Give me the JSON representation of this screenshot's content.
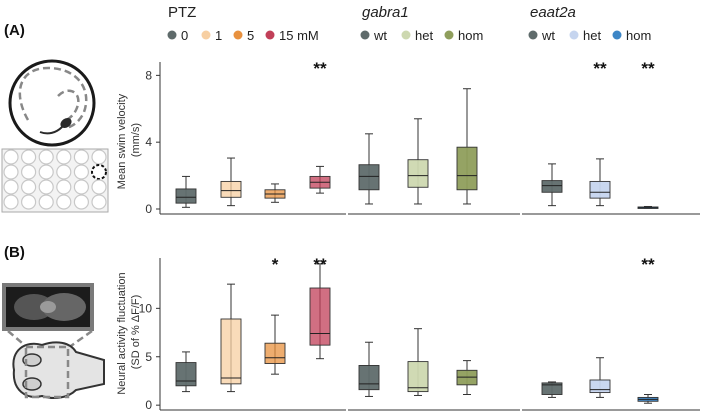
{
  "panels": [
    {
      "label": "(A)"
    },
    {
      "label": "(B)"
    }
  ],
  "groups": [
    {
      "title": "PTZ",
      "italic": false,
      "legend": [
        {
          "name": "0",
          "color": "#5f6b6b"
        },
        {
          "name": "1",
          "color": "#f7cfa2"
        },
        {
          "name": "5",
          "color": "#e8913f"
        },
        {
          "name": "15 mM",
          "color": "#c13f58"
        }
      ]
    },
    {
      "title": "gabra1",
      "italic": true,
      "legend": [
        {
          "name": "wt",
          "color": "#5f6b6b"
        },
        {
          "name": "het",
          "color": "#cdd8b0"
        },
        {
          "name": "hom",
          "color": "#8f9e5c"
        }
      ]
    },
    {
      "title": "eaat2a",
      "italic": true,
      "legend": [
        {
          "name": "wt",
          "color": "#5f6b6b"
        },
        {
          "name": "het",
          "color": "#c6d5ef"
        },
        {
          "name": "hom",
          "color": "#3d86c6"
        }
      ]
    }
  ],
  "chart_data": [
    {
      "type": "box",
      "panel": "A",
      "ylabel": "Mean swim velocity\n(mm/s)",
      "ylim": [
        -0.3,
        8.8
      ],
      "yticks": [
        0,
        4,
        8
      ],
      "groups": [
        {
          "name": "PTZ",
          "boxes": [
            {
              "name": "0",
              "color": "#5f6b6b",
              "min": 0.1,
              "q1": 0.35,
              "median": 0.7,
              "q3": 1.2,
              "max": 1.95
            },
            {
              "name": "1",
              "color": "#f7cfa2",
              "min": 0.2,
              "q1": 0.7,
              "median": 1.1,
              "q3": 1.65,
              "max": 3.05,
              "alpha": 0.75
            },
            {
              "name": "5",
              "color": "#e8913f",
              "min": 0.4,
              "q1": 0.65,
              "median": 0.9,
              "q3": 1.15,
              "max": 1.5,
              "alpha": 0.75
            },
            {
              "name": "15 mM",
              "color": "#c13f58",
              "min": 0.95,
              "q1": 1.25,
              "median": 1.6,
              "q3": 1.95,
              "max": 2.55,
              "alpha": 0.75,
              "sig": "**"
            }
          ]
        },
        {
          "name": "gabra1",
          "boxes": [
            {
              "name": "wt",
              "color": "#5f6b6b",
              "min": 0.3,
              "q1": 1.15,
              "median": 1.95,
              "q3": 2.65,
              "max": 4.5
            },
            {
              "name": "het",
              "color": "#cdd8b0",
              "min": 0.3,
              "q1": 1.3,
              "median": 2.0,
              "q3": 2.95,
              "max": 5.4
            },
            {
              "name": "hom",
              "color": "#8f9e5c",
              "min": 0.3,
              "q1": 1.15,
              "median": 2.0,
              "q3": 3.7,
              "max": 7.2
            }
          ]
        },
        {
          "name": "eaat2a",
          "boxes": [
            {
              "name": "wt",
              "color": "#5f6b6b",
              "min": 0.2,
              "q1": 1.0,
              "median": 1.4,
              "q3": 1.7,
              "max": 2.7
            },
            {
              "name": "het",
              "color": "#c6d5ef",
              "min": 0.2,
              "q1": 0.65,
              "median": 1.0,
              "q3": 1.65,
              "max": 3.0,
              "sig": "**"
            },
            {
              "name": "hom",
              "color": "#3d86c6",
              "min": 0.05,
              "q1": 0.08,
              "median": 0.1,
              "q3": 0.12,
              "max": 0.15,
              "sig": "**"
            }
          ]
        }
      ]
    },
    {
      "type": "box",
      "panel": "B",
      "ylabel": "Neural activity fluctuation\n(SD of % ΔF/F)",
      "ylim": [
        -0.5,
        15.2
      ],
      "yticks": [
        0,
        5,
        10
      ],
      "groups": [
        {
          "name": "PTZ",
          "boxes": [
            {
              "name": "0",
              "color": "#5f6b6b",
              "min": 1.4,
              "q1": 2.0,
              "median": 2.5,
              "q3": 4.4,
              "max": 5.5
            },
            {
              "name": "1",
              "color": "#f7cfa2",
              "min": 1.4,
              "q1": 2.2,
              "median": 2.8,
              "q3": 8.9,
              "max": 12.5,
              "alpha": 0.75
            },
            {
              "name": "5",
              "color": "#e8913f",
              "min": 3.2,
              "q1": 4.3,
              "median": 4.9,
              "q3": 6.4,
              "max": 9.3,
              "alpha": 0.75,
              "sig": "*"
            },
            {
              "name": "15 mM",
              "color": "#c13f58",
              "min": 4.8,
              "q1": 6.2,
              "median": 7.4,
              "q3": 12.1,
              "max": 14.6,
              "alpha": 0.75,
              "sig": "**"
            }
          ]
        },
        {
          "name": "gabra1",
          "boxes": [
            {
              "name": "wt",
              "color": "#5f6b6b",
              "min": 0.9,
              "q1": 1.6,
              "median": 2.2,
              "q3": 4.1,
              "max": 6.5
            },
            {
              "name": "het",
              "color": "#cdd8b0",
              "min": 1.0,
              "q1": 1.4,
              "median": 1.8,
              "q3": 4.5,
              "max": 7.9
            },
            {
              "name": "hom",
              "color": "#8f9e5c",
              "min": 1.1,
              "q1": 2.1,
              "median": 2.9,
              "q3": 3.6,
              "max": 4.6
            }
          ]
        },
        {
          "name": "eaat2a",
          "boxes": [
            {
              "name": "wt",
              "color": "#5f6b6b",
              "min": 0.8,
              "q1": 1.1,
              "median": 2.1,
              "q3": 2.3,
              "max": 2.4
            },
            {
              "name": "het",
              "color": "#c6d5ef",
              "min": 0.8,
              "q1": 1.3,
              "median": 1.6,
              "q3": 2.6,
              "max": 4.9
            },
            {
              "name": "hom",
              "color": "#3d86c6",
              "min": 0.2,
              "q1": 0.4,
              "median": 0.6,
              "q3": 0.8,
              "max": 1.1,
              "sig": "**"
            }
          ]
        }
      ]
    }
  ]
}
